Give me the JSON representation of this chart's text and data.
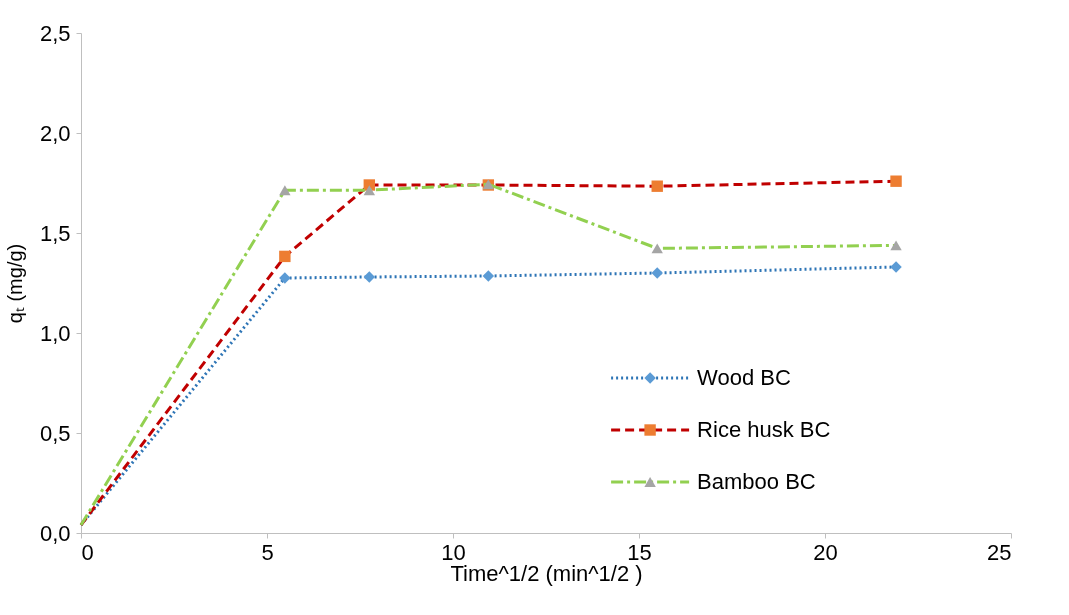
{
  "chart_data": {
    "type": "line",
    "xlabel": "Time^1/2 (min^1/2 )",
    "ylabel": "qₜ (mg/g)",
    "x": [
      0,
      5.48,
      7.75,
      10.95,
      15.49,
      21.91
    ],
    "series": [
      {
        "name": "Wood BC",
        "color": "#2e75b6",
        "line_style": "dotted",
        "marker": "diamond",
        "colors": [
          null,
          "#5b9bd5",
          "#5b9bd5",
          "#5b9bd5",
          "#5b9bd5",
          "#5b9bd5"
        ],
        "values": [
          0.04,
          1.275,
          1.28,
          1.285,
          1.3,
          1.33
        ]
      },
      {
        "name": "Rice husk BC",
        "color": "#c00000",
        "line_style": "dashed",
        "marker": "square",
        "colors": [
          null,
          "#ed7d31",
          "#ed7d31",
          "#ed7d31",
          "#ed7d31",
          "#ed7d31"
        ],
        "values": [
          0.04,
          1.383,
          1.74,
          1.74,
          1.734,
          1.759
        ]
      },
      {
        "name": "Bamboo BC",
        "color": "#92d050",
        "line_style": "dashdot",
        "marker": "triangle",
        "colors": [
          null,
          "#a5a5a5",
          "#a5a5a5",
          "#a5a5a5",
          "#a5a5a5",
          "#a5a5a5"
        ],
        "values": [
          0.04,
          1.714,
          1.714,
          1.744,
          1.423,
          1.438
        ]
      }
    ],
    "xlim": [
      0,
      25
    ],
    "xticks": [
      0,
      5,
      10,
      15,
      20,
      25
    ],
    "ylim": [
      0,
      2.5
    ],
    "yticks": [
      {
        "value": 0,
        "label": "0,0"
      },
      {
        "value": 0.5,
        "label": "0,5"
      },
      {
        "value": 1.0,
        "label": "1,0"
      },
      {
        "value": 1.5,
        "label": "1,5"
      },
      {
        "value": 2.0,
        "label": "2,0"
      },
      {
        "value": 2.5,
        "label": "2,5"
      }
    ],
    "grid": false,
    "legend": "right"
  }
}
